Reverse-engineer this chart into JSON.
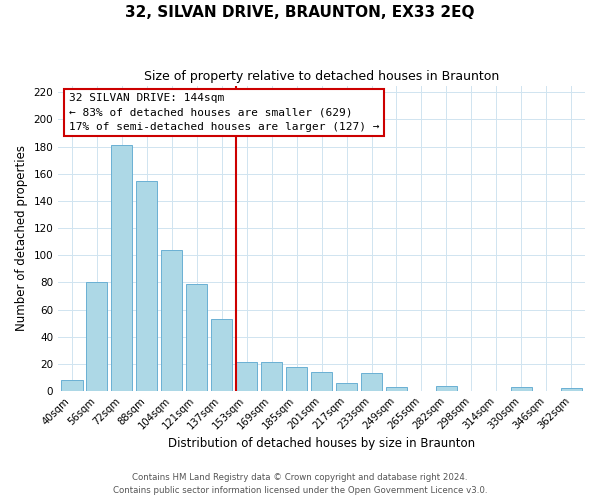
{
  "title": "32, SILVAN DRIVE, BRAUNTON, EX33 2EQ",
  "subtitle": "Size of property relative to detached houses in Braunton",
  "xlabel": "Distribution of detached houses by size in Braunton",
  "ylabel": "Number of detached properties",
  "bar_labels": [
    "40sqm",
    "56sqm",
    "72sqm",
    "88sqm",
    "104sqm",
    "121sqm",
    "137sqm",
    "153sqm",
    "169sqm",
    "185sqm",
    "201sqm",
    "217sqm",
    "233sqm",
    "249sqm",
    "265sqm",
    "282sqm",
    "298sqm",
    "314sqm",
    "330sqm",
    "346sqm",
    "362sqm"
  ],
  "bar_values": [
    8,
    80,
    181,
    155,
    104,
    79,
    53,
    21,
    21,
    18,
    14,
    6,
    13,
    3,
    0,
    4,
    0,
    0,
    3,
    0,
    2
  ],
  "bar_color": "#add8e6",
  "bar_edge_color": "#6ab0d4",
  "vline_x_index": 7,
  "vline_color": "#cc0000",
  "annotation_title": "32 SILVAN DRIVE: 144sqm",
  "annotation_line1": "← 83% of detached houses are smaller (629)",
  "annotation_line2": "17% of semi-detached houses are larger (127) →",
  "annotation_box_color": "#ffffff",
  "annotation_box_edge": "#cc0000",
  "ylim": [
    0,
    225
  ],
  "yticks": [
    0,
    20,
    40,
    60,
    80,
    100,
    120,
    140,
    160,
    180,
    200,
    220
  ],
  "footer_line1": "Contains HM Land Registry data © Crown copyright and database right 2024.",
  "footer_line2": "Contains public sector information licensed under the Open Government Licence v3.0.",
  "bg_color": "#ffffff",
  "grid_color": "#d0e4f0",
  "title_fontsize": 11,
  "subtitle_fontsize": 9
}
